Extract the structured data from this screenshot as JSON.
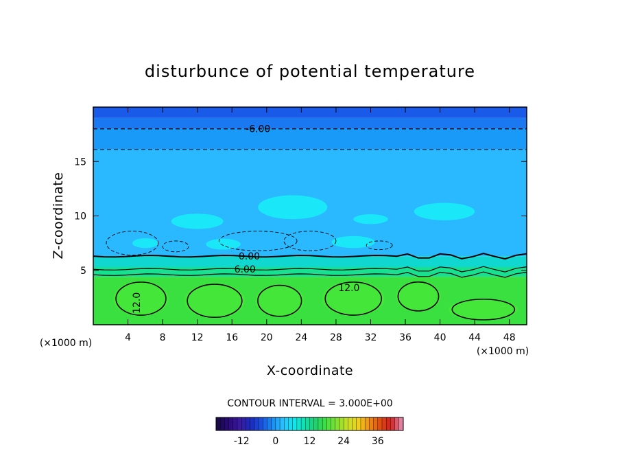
{
  "chart_data": {
    "type": "heatmap",
    "title": "disturbunce of potential temperature",
    "xlabel": "X-coordinate",
    "ylabel": "Z-coordinate",
    "x_unit": "(×1000 m)",
    "x_unit_right": "(×1000 m)",
    "xlim": [
      0,
      50
    ],
    "ylim": [
      0,
      20
    ],
    "x_ticks": [
      "4",
      "8",
      "12",
      "16",
      "20",
      "24",
      "28",
      "32",
      "36",
      "40",
      "44",
      "48"
    ],
    "y_ticks": [
      "5",
      "10",
      "15"
    ],
    "x_tick_values": [
      4,
      8,
      12,
      16,
      20,
      24,
      28,
      32,
      36,
      40,
      44,
      48
    ],
    "y_tick_values": [
      5,
      10,
      15
    ],
    "contour_interval_text": "CONTOUR INTERVAL = 3.000E+00",
    "contour_labels": [
      {
        "text": "-6.00",
        "x": 19,
        "z": 18.0
      },
      {
        "text": "0.00",
        "x": 18,
        "z": 6.3
      },
      {
        "text": "6.00",
        "x": 17.5,
        "z": 5.1
      },
      {
        "text": "12.0",
        "x": 29.5,
        "z": 3.4
      },
      {
        "text": "12.0",
        "x": 5,
        "z": 2.0,
        "rotate": -90
      }
    ],
    "colorbar": {
      "ticks": [
        "-12",
        "0",
        "12",
        "24",
        "36"
      ],
      "tick_values": [
        -12,
        0,
        12,
        24,
        36
      ],
      "range": [
        -21,
        45
      ],
      "colors": [
        "#1a0a4a",
        "#2a0a7a",
        "#3a1aa0",
        "#1a2ac0",
        "#1a50e0",
        "#1a8af0",
        "#2ac0ff",
        "#10e8f0",
        "#10e0b0",
        "#20d070",
        "#40e040",
        "#80e030",
        "#c8e020",
        "#f0d020",
        "#f09010",
        "#e05010",
        "#d02020",
        "#e080a0"
      ]
    },
    "layers": [
      {
        "z0": 19.0,
        "z1": 20.0,
        "color": "#1a5ae8"
      },
      {
        "z0": 18.0,
        "z1": 19.0,
        "color": "#1a78f0"
      },
      {
        "z0": 16.1,
        "z1": 18.0,
        "color": "#1a9af8"
      },
      {
        "z0": 6.3,
        "z1": 16.1,
        "color": "#2ab8ff"
      },
      {
        "z0": 5.3,
        "z1": 6.3,
        "color": "#10d8d0"
      },
      {
        "z0": 4.4,
        "z1": 5.3,
        "color": "#18e090"
      },
      {
        "z0": 0,
        "z1": 4.4,
        "color": "#3ae040"
      }
    ],
    "dashed_levels_z": [
      18.0,
      16.1
    ],
    "solid_levels_z": [
      6.3,
      5.1,
      4.6
    ]
  }
}
